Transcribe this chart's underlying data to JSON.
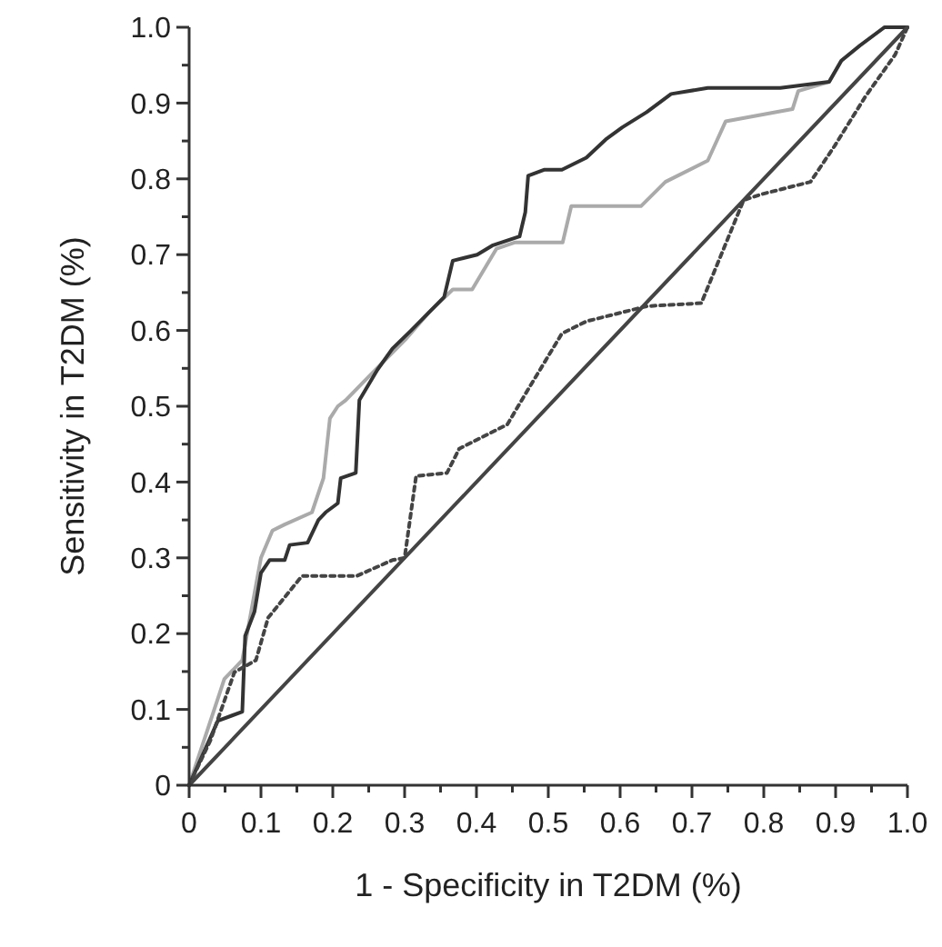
{
  "chart_data": {
    "type": "line",
    "xlabel": "1 - Specificity in T2DM (%)",
    "ylabel": "Sensitivity in T2DM (%)",
    "xlim": [
      0,
      1
    ],
    "ylim": [
      0,
      1
    ],
    "xticks": [
      {
        "value": 0,
        "label": "0"
      },
      {
        "value": 0.05,
        "label": null
      },
      {
        "value": 0.1,
        "label": "0.1"
      },
      {
        "value": 0.15,
        "label": null
      },
      {
        "value": 0.2,
        "label": "0.2"
      },
      {
        "value": 0.25,
        "label": null
      },
      {
        "value": 0.3,
        "label": "0.3"
      },
      {
        "value": 0.35,
        "label": null
      },
      {
        "value": 0.4,
        "label": "0.4"
      },
      {
        "value": 0.45,
        "label": null
      },
      {
        "value": 0.5,
        "label": "0.5"
      },
      {
        "value": 0.55,
        "label": null
      },
      {
        "value": 0.6,
        "label": "0.6"
      },
      {
        "value": 0.65,
        "label": null
      },
      {
        "value": 0.7,
        "label": "0.7"
      },
      {
        "value": 0.75,
        "label": null
      },
      {
        "value": 0.8,
        "label": "0.8"
      },
      {
        "value": 0.85,
        "label": null
      },
      {
        "value": 0.9,
        "label": "0.9"
      },
      {
        "value": 0.95,
        "label": null
      },
      {
        "value": 1,
        "label": "1.0"
      }
    ],
    "yticks": [
      {
        "value": 0,
        "label": "0"
      },
      {
        "value": 0.05,
        "label": null
      },
      {
        "value": 0.1,
        "label": "0.1"
      },
      {
        "value": 0.15,
        "label": null
      },
      {
        "value": 0.2,
        "label": "0.2"
      },
      {
        "value": 0.25,
        "label": null
      },
      {
        "value": 0.3,
        "label": "0.3"
      },
      {
        "value": 0.35,
        "label": null
      },
      {
        "value": 0.4,
        "label": "0.4"
      },
      {
        "value": 0.45,
        "label": null
      },
      {
        "value": 0.5,
        "label": "0.5"
      },
      {
        "value": 0.55,
        "label": null
      },
      {
        "value": 0.6,
        "label": "0.6"
      },
      {
        "value": 0.65,
        "label": null
      },
      {
        "value": 0.7,
        "label": "0.7"
      },
      {
        "value": 0.75,
        "label": null
      },
      {
        "value": 0.8,
        "label": "0.8"
      },
      {
        "value": 0.85,
        "label": null
      },
      {
        "value": 0.9,
        "label": "0.9"
      },
      {
        "value": 0.95,
        "label": null
      },
      {
        "value": 1,
        "label": "1.0"
      }
    ],
    "grid": false,
    "marker": "none",
    "series": [
      {
        "color": "#aaaaaa",
        "line_style": "solid",
        "x": [
          0,
          0.049,
          0.074,
          0.1,
          0.116,
          0.133,
          0.171,
          0.187,
          0.196,
          0.207,
          0.218,
          0.251,
          0.301,
          0.334,
          0.367,
          0.394,
          0.428,
          0.453,
          0.52,
          0.532,
          0.629,
          0.663,
          0.722,
          0.747,
          0.84,
          0.848,
          0.891,
          0.908,
          0.934,
          0.968,
          1
        ],
        "values": [
          0,
          0.14,
          0.165,
          0.3,
          0.336,
          0.344,
          0.36,
          0.405,
          0.484,
          0.5,
          0.508,
          0.54,
          0.588,
          0.624,
          0.654,
          0.654,
          0.708,
          0.716,
          0.716,
          0.764,
          0.764,
          0.796,
          0.824,
          0.876,
          0.892,
          0.916,
          0.928,
          0.956,
          0.976,
          1,
          1
        ]
      },
      {
        "color": "#333333",
        "line_style": "solid",
        "x": [
          0,
          0.04,
          0.074,
          0.078,
          0.091,
          0.1,
          0.112,
          0.133,
          0.14,
          0.165,
          0.18,
          0.19,
          0.207,
          0.211,
          0.232,
          0.237,
          0.262,
          0.283,
          0.309,
          0.334,
          0.355,
          0.367,
          0.401,
          0.422,
          0.46,
          0.468,
          0.472,
          0.494,
          0.519,
          0.553,
          0.58,
          0.603,
          0.637,
          0.671,
          0.722,
          0.823,
          0.891,
          0.908,
          0.934,
          0.968,
          1
        ],
        "values": [
          0,
          0.085,
          0.097,
          0.197,
          0.229,
          0.28,
          0.297,
          0.297,
          0.317,
          0.32,
          0.35,
          0.36,
          0.372,
          0.405,
          0.412,
          0.508,
          0.548,
          0.576,
          0.6,
          0.624,
          0.644,
          0.692,
          0.7,
          0.712,
          0.724,
          0.756,
          0.804,
          0.812,
          0.812,
          0.828,
          0.852,
          0.868,
          0.888,
          0.912,
          0.92,
          0.92,
          0.928,
          0.956,
          0.976,
          1,
          1
        ]
      },
      {
        "color": "#444444",
        "line_style": "dotted",
        "x": [
          0,
          0.03,
          0.063,
          0.093,
          0.11,
          0.157,
          0.233,
          0.283,
          0.3,
          0.316,
          0.359,
          0.376,
          0.401,
          0.443,
          0.468,
          0.519,
          0.553,
          0.637,
          0.713,
          0.772,
          0.798,
          0.865,
          0.899,
          0.941,
          0.983,
          1
        ],
        "values": [
          0,
          0.06,
          0.149,
          0.165,
          0.221,
          0.276,
          0.276,
          0.297,
          0.3,
          0.408,
          0.412,
          0.444,
          0.456,
          0.476,
          0.516,
          0.596,
          0.612,
          0.632,
          0.636,
          0.772,
          0.78,
          0.796,
          0.844,
          0.908,
          0.964,
          1
        ]
      },
      {
        "color": "#444444",
        "line_style": "solid",
        "x": [
          0,
          1
        ],
        "values": [
          0,
          1
        ]
      }
    ]
  }
}
